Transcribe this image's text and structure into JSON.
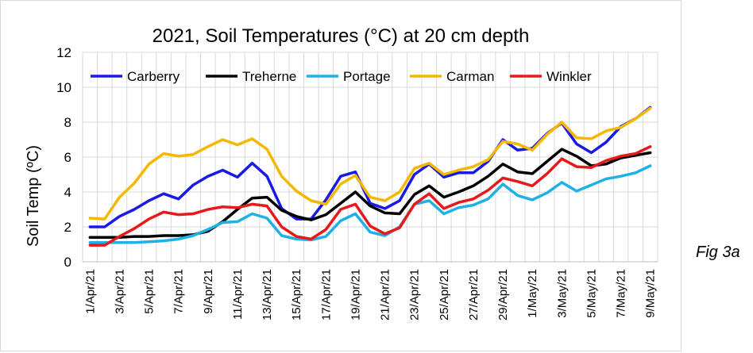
{
  "figure_label": "Fig 3a",
  "chart_data": {
    "type": "line",
    "title": "2021, Soil Temperatures (°C) at 20 cm depth",
    "xlabel": "",
    "ylabel": "Soil Temp (ºC)",
    "ylim": [
      0,
      12
    ],
    "yticks": [
      0,
      2,
      4,
      6,
      8,
      10,
      12
    ],
    "grid": true,
    "legend_position": "top",
    "x": [
      "1/Apr/21",
      "2/Apr/21",
      "3/Apr/21",
      "4/Apr/21",
      "5/Apr/21",
      "6/Apr/21",
      "7/Apr/21",
      "8/Apr/21",
      "9/Apr/21",
      "10/Apr/21",
      "11/Apr/21",
      "12/Apr/21",
      "13/Apr/21",
      "14/Apr/21",
      "15/Apr/21",
      "16/Apr/21",
      "17/Apr/21",
      "18/Apr/21",
      "19/Apr/21",
      "20/Apr/21",
      "21/Apr/21",
      "22/Apr/21",
      "23/Apr/21",
      "24/Apr/21",
      "25/Apr/21",
      "26/Apr/21",
      "27/Apr/21",
      "28/Apr/21",
      "29/Apr/21",
      "30/Apr/21",
      "1/May/21",
      "2/May/21",
      "3/May/21",
      "4/May/21",
      "5/May/21",
      "6/May/21",
      "7/May/21",
      "8/May/21",
      "9/May/21"
    ],
    "xtick_labels": [
      "1/Apr/21",
      "3/Apr/21",
      "5/Apr/21",
      "7/Apr/21",
      "9/Apr/21",
      "11/Apr/21",
      "13/Apr/21",
      "15/Apr/21",
      "17/Apr/21",
      "19/Apr/21",
      "21/Apr/21",
      "23/Apr/21",
      "25/Apr/21",
      "27/Apr/21",
      "29/Apr/21",
      "1/May/21",
      "3/May/21",
      "5/May/21",
      "7/May/21",
      "9/May/21"
    ],
    "series": [
      {
        "name": "Carberry",
        "color": "#1a1ae6",
        "values": [
          2.0,
          2.0,
          2.6,
          3.0,
          3.5,
          3.9,
          3.6,
          4.4,
          4.9,
          5.25,
          4.85,
          5.65,
          4.9,
          3.05,
          2.45,
          2.45,
          3.55,
          4.9,
          5.15,
          3.35,
          3.05,
          3.5,
          5.0,
          5.6,
          4.85,
          5.1,
          5.1,
          5.75,
          7.0,
          6.4,
          6.5,
          7.35,
          7.95,
          6.75,
          6.25,
          6.85,
          7.75,
          8.2,
          8.85
        ]
      },
      {
        "name": "Treherne",
        "color": "#000000",
        "values": [
          1.4,
          1.4,
          1.4,
          1.45,
          1.45,
          1.5,
          1.5,
          1.55,
          1.75,
          2.3,
          3.0,
          3.65,
          3.7,
          2.95,
          2.6,
          2.4,
          2.7,
          3.35,
          4.0,
          3.2,
          2.8,
          2.75,
          3.85,
          4.35,
          3.7,
          4.0,
          4.35,
          4.9,
          5.6,
          5.15,
          5.05,
          5.75,
          6.45,
          6.05,
          5.5,
          5.6,
          5.95,
          6.1,
          6.25
        ]
      },
      {
        "name": "Portage",
        "color": "#1fb1e6",
        "values": [
          1.1,
          1.1,
          1.1,
          1.1,
          1.15,
          1.2,
          1.3,
          1.5,
          1.85,
          2.25,
          2.3,
          2.75,
          2.5,
          1.5,
          1.3,
          1.25,
          1.45,
          2.35,
          2.75,
          1.7,
          1.5,
          2.0,
          3.3,
          3.5,
          2.75,
          3.1,
          3.25,
          3.6,
          4.45,
          3.8,
          3.55,
          3.95,
          4.55,
          4.05,
          4.4,
          4.75,
          4.9,
          5.1,
          5.5
        ]
      },
      {
        "name": "Carman",
        "color": "#f5b800",
        "values": [
          2.5,
          2.45,
          3.7,
          4.5,
          5.6,
          6.2,
          6.05,
          6.15,
          6.6,
          7.0,
          6.7,
          7.05,
          6.45,
          4.9,
          4.05,
          3.5,
          3.3,
          4.45,
          4.95,
          3.7,
          3.5,
          4.0,
          5.35,
          5.65,
          5.0,
          5.25,
          5.45,
          5.85,
          6.9,
          6.75,
          6.4,
          7.3,
          8.0,
          7.1,
          7.05,
          7.5,
          7.7,
          8.2,
          8.8
        ]
      },
      {
        "name": "Winkler",
        "color": "#e61a1a",
        "values": [
          0.95,
          0.95,
          1.45,
          1.9,
          2.45,
          2.85,
          2.7,
          2.75,
          3.0,
          3.15,
          3.1,
          3.3,
          3.2,
          2.0,
          1.45,
          1.3,
          1.85,
          3.0,
          3.3,
          2.05,
          1.6,
          1.95,
          3.3,
          3.9,
          3.05,
          3.4,
          3.6,
          4.1,
          4.8,
          4.6,
          4.35,
          5.05,
          5.9,
          5.45,
          5.4,
          5.8,
          6.05,
          6.2,
          6.6
        ]
      }
    ]
  }
}
